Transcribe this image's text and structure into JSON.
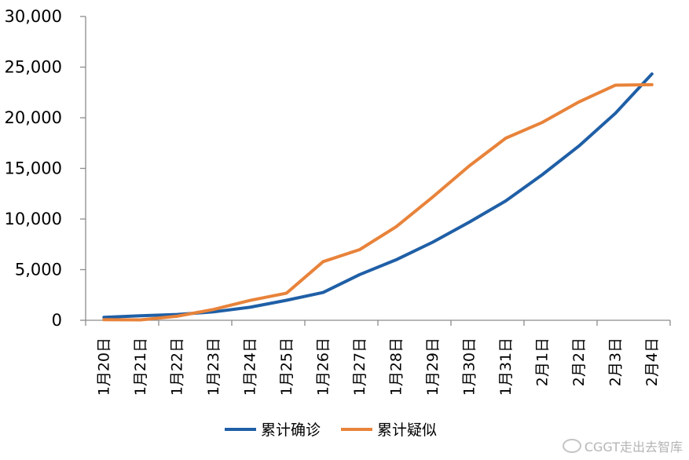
{
  "chart_data": {
    "type": "line",
    "categories": [
      "1月20日",
      "1月21日",
      "1月22日",
      "1月23日",
      "1月24日",
      "1月25日",
      "1月26日",
      "1月27日",
      "1月28日",
      "1月29日",
      "1月30日",
      "1月31日",
      "2月1日",
      "2月2日",
      "2月3日",
      "2月4日"
    ],
    "series": [
      {
        "name": "累计确诊",
        "color": "#1f5fa6",
        "values": [
          291,
          440,
          571,
          830,
          1287,
          1975,
          2744,
          4515,
          5974,
          7711,
          9692,
          11791,
          14380,
          17205,
          20438,
          24324
        ]
      },
      {
        "name": "累计疑似",
        "color": "#e8833a",
        "values": [
          54,
          37,
          393,
          1072,
          1965,
          2684,
          5794,
          6973,
          9239,
          12167,
          15238,
          17988,
          19544,
          21558,
          23214,
          23260
        ]
      }
    ],
    "y_ticks": [
      "0",
      "5,000",
      "10,000",
      "15,000",
      "20,000",
      "25,000",
      "30,000"
    ],
    "ylim": [
      0,
      30000
    ],
    "grid": false,
    "legend_position": "bottom"
  },
  "watermark": "CGGT走出去智库"
}
